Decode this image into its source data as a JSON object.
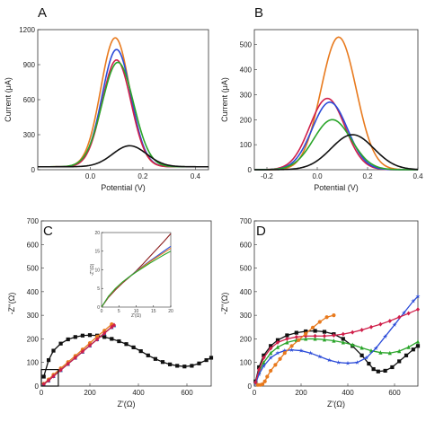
{
  "chart_data": [
    {
      "panel": "A",
      "type": "line",
      "xlabel": "Potential (V)",
      "ylabel": "Current (μA)",
      "xlim": [
        -0.2,
        0.45
      ],
      "ylim": [
        0,
        1200
      ],
      "xticks": [
        0.0,
        0.2,
        0.4
      ],
      "yticks": [
        0,
        300,
        600,
        900,
        1200
      ],
      "xtick_labels": [
        "0.0",
        "0.2",
        "0.4"
      ],
      "ytick_labels": [
        "0",
        "300",
        "600",
        "900",
        "1200"
      ],
      "series": [
        {
          "color": "#e87a1e",
          "peak_x": 0.095,
          "peak_y": 1130,
          "width": 0.055,
          "base": 25
        },
        {
          "color": "#2b4bd8",
          "peak_x": 0.1,
          "peak_y": 1030,
          "width": 0.055,
          "base": 25
        },
        {
          "color": "#d01f4a",
          "peak_x": 0.1,
          "peak_y": 940,
          "width": 0.055,
          "base": 25
        },
        {
          "color": "#2aa52a",
          "peak_x": 0.105,
          "peak_y": 920,
          "width": 0.06,
          "base": 25
        },
        {
          "color": "#111111",
          "peak_x": 0.15,
          "peak_y": 205,
          "width": 0.065,
          "base": 25
        }
      ]
    },
    {
      "panel": "B",
      "type": "line",
      "xlabel": "Potential (V)",
      "ylabel": "Current (μA)",
      "xlim": [
        -0.25,
        0.4
      ],
      "ylim": [
        0,
        560
      ],
      "xticks": [
        -0.2,
        0.0,
        0.2,
        0.4
      ],
      "yticks": [
        0,
        100,
        200,
        300,
        400,
        500
      ],
      "xtick_labels": [
        "-0.2",
        "0.0",
        "0.2",
        "0.4"
      ],
      "ytick_labels": [
        "0",
        "100",
        "200",
        "300",
        "400",
        "500"
      ],
      "series": [
        {
          "color": "#e87a1e",
          "peak_x": 0.085,
          "peak_y": 530,
          "width": 0.07,
          "base": 0
        },
        {
          "color": "#d01f4a",
          "peak_x": 0.04,
          "peak_y": 285,
          "width": 0.07,
          "base": 0
        },
        {
          "color": "#2b4bd8",
          "peak_x": 0.05,
          "peak_y": 270,
          "width": 0.07,
          "base": 0
        },
        {
          "color": "#2aa52a",
          "peak_x": 0.06,
          "peak_y": 200,
          "width": 0.075,
          "base": 0
        },
        {
          "color": "#111111",
          "peak_x": 0.14,
          "peak_y": 140,
          "width": 0.085,
          "base": 0
        }
      ]
    },
    {
      "panel": "C",
      "type": "scatter",
      "xlabel": "Z'(Ω)",
      "ylabel": "-Z''(Ω)",
      "xlim": [
        0,
        700
      ],
      "ylim": [
        0,
        700
      ],
      "xticks": [
        0,
        200,
        400,
        600
      ],
      "yticks": [
        0,
        100,
        200,
        300,
        400,
        500,
        600,
        700
      ],
      "xtick_labels": [
        "0",
        "200",
        "400",
        "600"
      ],
      "ytick_labels": [
        "0",
        "100",
        "200",
        "300",
        "400",
        "500",
        "600",
        "700"
      ],
      "series": [
        {
          "color": "#111111",
          "marker": "square",
          "x": [
            10,
            30,
            50,
            80,
            110,
            140,
            170,
            200,
            230,
            260,
            290,
            320,
            350,
            380,
            410,
            440,
            470,
            500,
            530,
            560,
            590,
            620,
            650,
            680,
            700
          ],
          "y": [
            40,
            110,
            150,
            180,
            198,
            208,
            214,
            216,
            214,
            208,
            200,
            190,
            178,
            164,
            148,
            130,
            115,
            102,
            92,
            86,
            83,
            86,
            96,
            110,
            120
          ]
        },
        {
          "color": "#e87a1e",
          "marker": "circle",
          "x": [
            10,
            30,
            50,
            80,
            110,
            140,
            170,
            200,
            230,
            260,
            290
          ],
          "y": [
            10,
            28,
            48,
            75,
            102,
            128,
            155,
            182,
            210,
            235,
            262
          ]
        },
        {
          "color": "#2aa52a",
          "marker": "triangle",
          "x": [
            10,
            30,
            50,
            80,
            110,
            140,
            170,
            200,
            230,
            260,
            290,
            300
          ],
          "y": [
            8,
            24,
            42,
            68,
            94,
            120,
            146,
            172,
            198,
            224,
            250,
            258
          ]
        },
        {
          "color": "#2b4bd8",
          "marker": "triangle",
          "x": [
            10,
            30,
            50,
            80,
            110,
            140,
            170,
            200,
            230,
            260,
            290,
            300
          ],
          "y": [
            8,
            24,
            42,
            68,
            94,
            120,
            146,
            172,
            198,
            224,
            250,
            258
          ]
        },
        {
          "color": "#d01f4a",
          "marker": "diamond",
          "x": [
            10,
            30,
            50,
            80,
            110,
            140,
            170,
            200,
            230,
            260,
            290,
            300
          ],
          "y": [
            8,
            24,
            42,
            68,
            94,
            120,
            146,
            172,
            198,
            224,
            250,
            258
          ]
        }
      ],
      "inset": {
        "ylabel": "-Z''(Ω)",
        "xlabel": "Z'(Ω)",
        "xlim": [
          0,
          20
        ],
        "ylim": [
          0,
          20
        ],
        "xticks": [
          0,
          5,
          10,
          15,
          20
        ],
        "yticks": [
          0,
          5,
          10,
          15,
          20
        ],
        "xtick_labels": [
          "0",
          "5",
          "10",
          "15",
          "20"
        ],
        "ytick_labels": [
          "0",
          "5",
          "10",
          "15",
          "20"
        ],
        "series": [
          {
            "color": "#8b1c1c",
            "x": [
              0,
              2,
              4,
              6,
              8,
              10,
              12,
              14,
              16,
              18,
              20
            ],
            "y": [
              0,
              2.6,
              4.6,
              6.4,
              8.0,
              9.7,
              11.6,
              13.6,
              15.6,
              17.6,
              19.7
            ]
          },
          {
            "color": "#2b4bd8",
            "x": [
              0,
              2,
              4,
              6,
              8,
              10,
              12,
              14,
              16,
              18,
              20
            ],
            "y": [
              0,
              2.8,
              4.9,
              6.6,
              8.1,
              9.6,
              11.0,
              12.4,
              13.7,
              15.0,
              16.3
            ]
          },
          {
            "color": "#e87a1e",
            "x": [
              0,
              2,
              4,
              6,
              8,
              10,
              12,
              14,
              16,
              18,
              20
            ],
            "y": [
              0,
              2.8,
              4.9,
              6.6,
              8.1,
              9.5,
              10.9,
              12.2,
              13.4,
              14.6,
              15.8
            ]
          },
          {
            "color": "#2aa52a",
            "x": [
              0,
              2,
              4,
              6,
              8,
              10,
              12,
              14,
              16,
              18,
              20
            ],
            "y": [
              0,
              2.9,
              5.0,
              6.7,
              8.1,
              9.4,
              10.6,
              11.8,
              12.9,
              14.0,
              15.0
            ]
          }
        ]
      }
    },
    {
      "panel": "D",
      "type": "scatter",
      "xlabel": "Z'(Ω)",
      "ylabel": "-Z''(Ω)",
      "xlim": [
        0,
        700
      ],
      "ylim": [
        0,
        700
      ],
      "xticks": [
        0,
        200,
        400,
        600
      ],
      "yticks": [
        0,
        100,
        200,
        300,
        400,
        500,
        600,
        700
      ],
      "xtick_labels": [
        "0",
        "200",
        "400",
        "600"
      ],
      "ytick_labels": [
        "0",
        "100",
        "200",
        "300",
        "400",
        "500",
        "600",
        "700"
      ],
      "series": [
        {
          "color": "#111111",
          "marker": "square",
          "x": [
            5,
            20,
            40,
            70,
            100,
            140,
            180,
            220,
            260,
            300,
            340,
            380,
            420,
            460,
            490,
            510,
            530,
            560,
            590,
            620,
            650,
            680,
            700
          ],
          "y": [
            20,
            80,
            130,
            170,
            195,
            215,
            226,
            232,
            234,
            230,
            220,
            200,
            170,
            130,
            95,
            72,
            62,
            65,
            80,
            105,
            130,
            155,
            170
          ]
        },
        {
          "color": "#2aa52a",
          "marker": "triangle",
          "x": [
            5,
            20,
            40,
            70,
            100,
            140,
            180,
            220,
            260,
            300,
            340,
            380,
            420,
            460,
            500,
            540,
            580,
            620,
            660,
            700
          ],
          "y": [
            15,
            60,
            100,
            140,
            165,
            185,
            195,
            200,
            200,
            197,
            192,
            185,
            175,
            162,
            150,
            142,
            140,
            148,
            165,
            188
          ]
        },
        {
          "color": "#2b4bd8",
          "marker": "star",
          "x": [
            5,
            20,
            40,
            70,
            100,
            130,
            160,
            200,
            240,
            280,
            320,
            360,
            400,
            440,
            480,
            520,
            560,
            600,
            640,
            680,
            700
          ],
          "y": [
            10,
            50,
            85,
            120,
            140,
            150,
            153,
            150,
            140,
            125,
            110,
            100,
            97,
            100,
            120,
            160,
            210,
            260,
            310,
            360,
            380
          ]
        },
        {
          "color": "#d01f4a",
          "marker": "diamond",
          "x": [
            5,
            20,
            40,
            70,
            100,
            140,
            180,
            220,
            260,
            300,
            340,
            380,
            420,
            460,
            500,
            540,
            580,
            620,
            660,
            700
          ],
          "y": [
            15,
            70,
            120,
            160,
            185,
            200,
            208,
            212,
            212,
            212,
            215,
            220,
            228,
            238,
            250,
            262,
            276,
            292,
            308,
            325
          ]
        },
        {
          "color": "#e87a1e",
          "marker": "circle",
          "x": [
            15,
            25,
            35,
            45,
            55,
            70,
            90,
            110,
            130,
            160,
            190,
            220,
            250,
            280,
            310,
            340
          ],
          "y": [
            5,
            5,
            8,
            20,
            40,
            65,
            90,
            115,
            140,
            170,
            195,
            222,
            248,
            272,
            292,
            300
          ]
        }
      ]
    }
  ]
}
